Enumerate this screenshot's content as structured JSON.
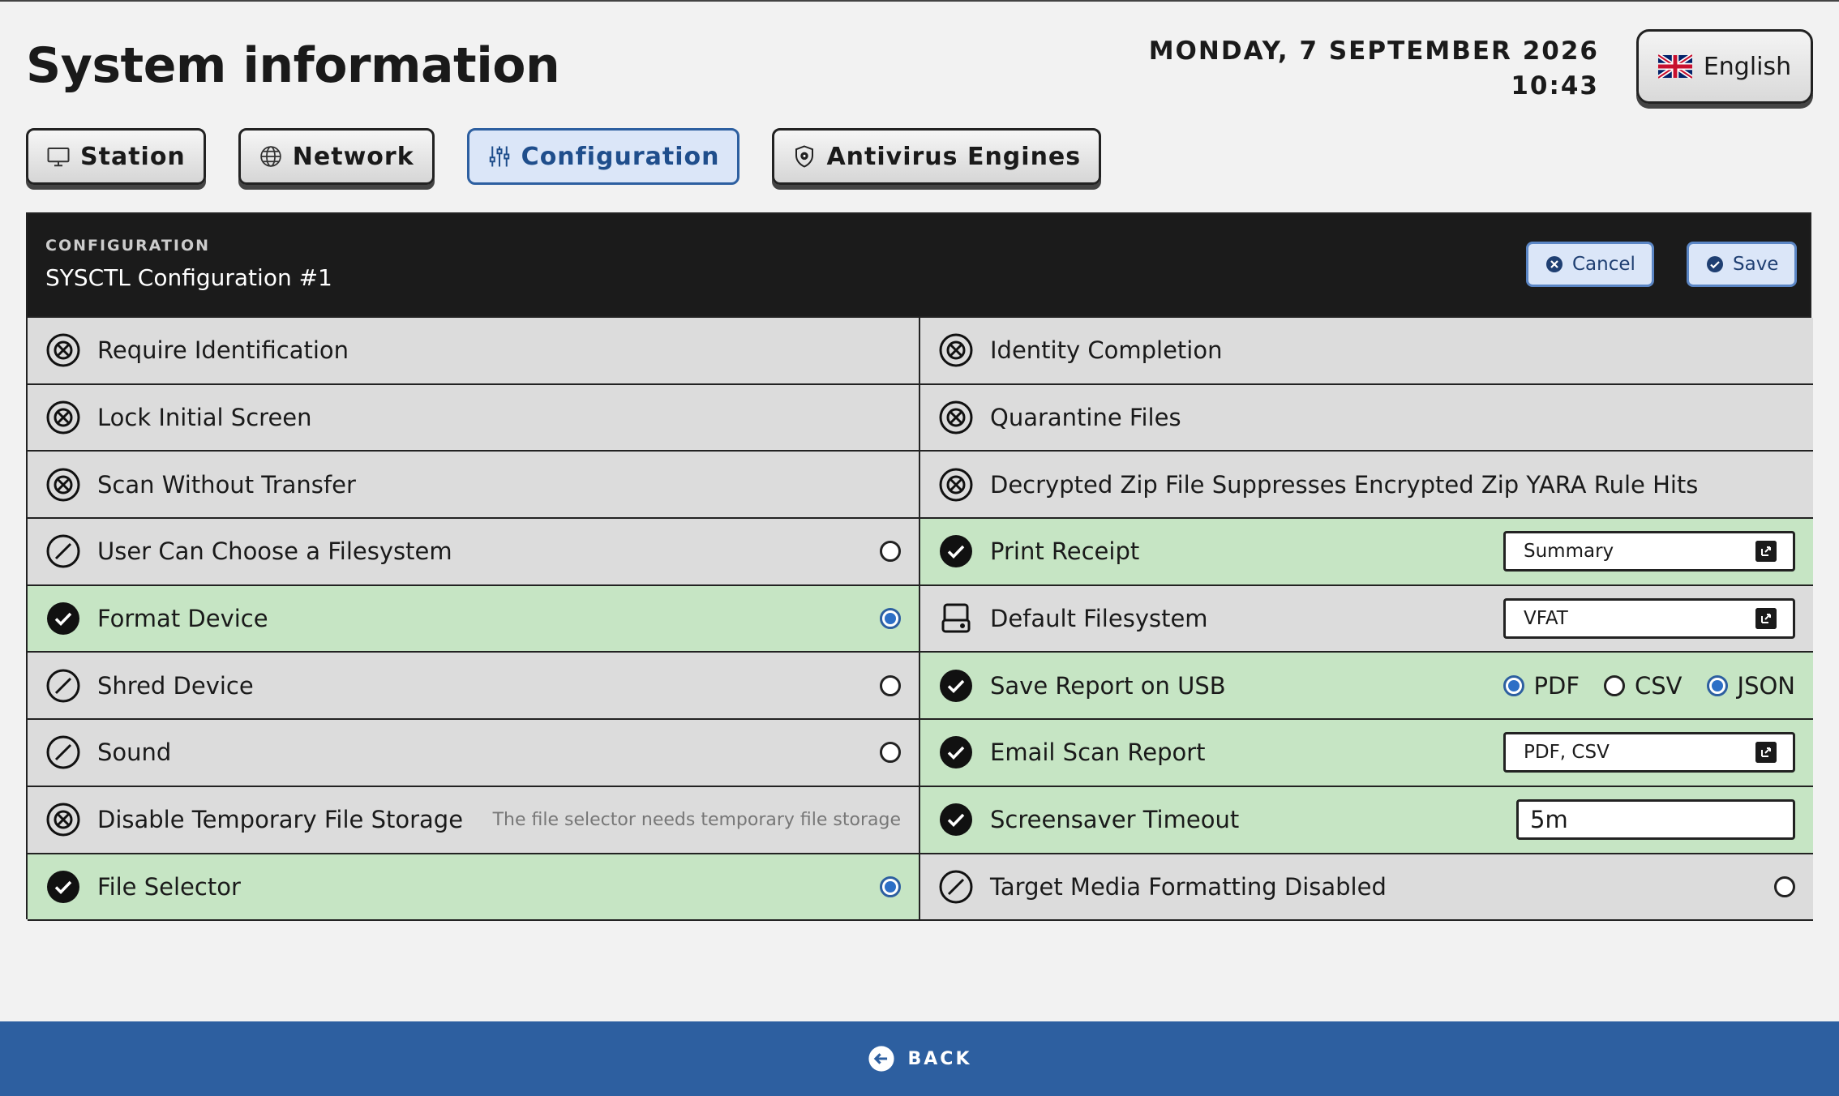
{
  "header": {
    "title": "System information",
    "date": "MONDAY, 7 SEPTEMBER 2026",
    "time": "10:43",
    "language": "English",
    "language_icon": "uk-flag-icon"
  },
  "tabs": [
    {
      "label": "Station",
      "icon": "monitor-icon",
      "active": false
    },
    {
      "label": "Network",
      "icon": "globe-icon",
      "active": false
    },
    {
      "label": "Configuration",
      "icon": "sliders-icon",
      "active": true
    },
    {
      "label": "Antivirus Engines",
      "icon": "shield-gear-icon",
      "active": false
    }
  ],
  "panel": {
    "caption": "CONFIGURATION",
    "name": "SYSCTL Configuration #1",
    "cancel_label": "Cancel",
    "save_label": "Save"
  },
  "left_rows": [
    {
      "label": "Require Identification",
      "state": "disabled-x"
    },
    {
      "label": "Lock Initial Screen",
      "state": "disabled-x"
    },
    {
      "label": "Scan Without Transfer",
      "state": "disabled-x"
    },
    {
      "label": "User Can Choose a Filesystem",
      "state": "off",
      "radio": false
    },
    {
      "label": "Format Device",
      "state": "on",
      "radio": true
    },
    {
      "label": "Shred Device",
      "state": "off",
      "radio": false
    },
    {
      "label": "Sound",
      "state": "off",
      "radio": false
    },
    {
      "label": "Disable Temporary File Storage",
      "state": "disabled-x",
      "note": "The file selector needs temporary file storage"
    },
    {
      "label": "File Selector",
      "state": "on",
      "radio": true
    }
  ],
  "right_rows": [
    {
      "label": "Identity Completion",
      "state": "disabled-x"
    },
    {
      "label": "Quarantine Files",
      "state": "disabled-x"
    },
    {
      "label": "Decrypted Zip File Suppresses Encrypted Zip YARA Rule Hits",
      "state": "disabled-x"
    },
    {
      "label": "Print Receipt",
      "state": "on",
      "select": "Summary"
    },
    {
      "label": "Default Filesystem",
      "state": "drive",
      "select": "VFAT"
    },
    {
      "label": "Save Report on USB",
      "state": "on",
      "options": [
        {
          "label": "PDF",
          "selected": true
        },
        {
          "label": "CSV",
          "selected": false
        },
        {
          "label": "JSON",
          "selected": true
        }
      ]
    },
    {
      "label": "Email Scan Report",
      "state": "on",
      "select": "PDF, CSV"
    },
    {
      "label": "Screensaver Timeout",
      "state": "on",
      "input": "5m"
    },
    {
      "label": "Target Media Formatting Disabled",
      "state": "off",
      "radio": false
    }
  ],
  "footer": {
    "back_label": "BACK"
  },
  "colors": {
    "accent": "#2d5fa0",
    "enabled_row": "#c6e5c4",
    "row": "#dcdcdc",
    "header": "#1b1b1b"
  }
}
